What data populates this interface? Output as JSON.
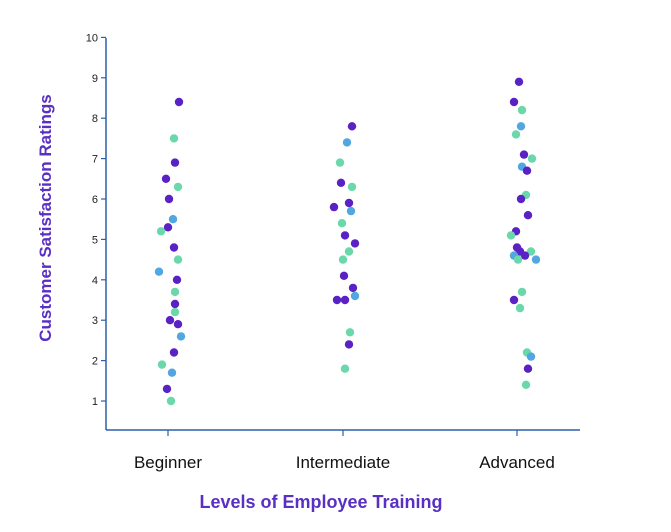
{
  "chart_data": {
    "type": "scatter",
    "title": "",
    "xlabel": "Levels of Employee Training",
    "ylabel": "Customer Satisfaction Ratings",
    "categories": [
      "Beginner",
      "Intermediate",
      "Advanced"
    ],
    "ylim": [
      0.5,
      10
    ],
    "yticks": [
      1,
      2,
      3,
      4,
      5,
      6,
      7,
      8,
      9,
      10
    ],
    "grid": false,
    "legend": "none",
    "colors": {
      "axis": "#2f5fa8",
      "label": "#5a2fc4",
      "purple": "#5a22c4",
      "teal": "#6ad8ab",
      "blue": "#52a7e0"
    },
    "points": [
      {
        "category": "Beginner",
        "offset": 0.22,
        "y": 8.4,
        "color": "purple"
      },
      {
        "category": "Beginner",
        "offset": 0.12,
        "y": 7.5,
        "color": "teal"
      },
      {
        "category": "Beginner",
        "offset": 0.14,
        "y": 6.9,
        "color": "purple"
      },
      {
        "category": "Beginner",
        "offset": -0.04,
        "y": 6.5,
        "color": "purple"
      },
      {
        "category": "Beginner",
        "offset": 0.2,
        "y": 6.3,
        "color": "teal"
      },
      {
        "category": "Beginner",
        "offset": 0.02,
        "y": 6.0,
        "color": "purple"
      },
      {
        "category": "Beginner",
        "offset": 0.1,
        "y": 5.5,
        "color": "blue"
      },
      {
        "category": "Beginner",
        "offset": 0.0,
        "y": 5.3,
        "color": "purple"
      },
      {
        "category": "Beginner",
        "offset": -0.14,
        "y": 5.2,
        "color": "teal"
      },
      {
        "category": "Beginner",
        "offset": 0.12,
        "y": 4.8,
        "color": "purple"
      },
      {
        "category": "Beginner",
        "offset": 0.2,
        "y": 4.5,
        "color": "teal"
      },
      {
        "category": "Beginner",
        "offset": -0.18,
        "y": 4.2,
        "color": "blue"
      },
      {
        "category": "Beginner",
        "offset": 0.18,
        "y": 4.0,
        "color": "purple"
      },
      {
        "category": "Beginner",
        "offset": 0.14,
        "y": 3.7,
        "color": "teal"
      },
      {
        "category": "Beginner",
        "offset": 0.14,
        "y": 3.4,
        "color": "purple"
      },
      {
        "category": "Beginner",
        "offset": 0.14,
        "y": 3.2,
        "color": "teal"
      },
      {
        "category": "Beginner",
        "offset": 0.04,
        "y": 3.0,
        "color": "purple"
      },
      {
        "category": "Beginner",
        "offset": 0.2,
        "y": 2.9,
        "color": "purple"
      },
      {
        "category": "Beginner",
        "offset": 0.26,
        "y": 2.6,
        "color": "blue"
      },
      {
        "category": "Beginner",
        "offset": 0.12,
        "y": 2.2,
        "color": "purple"
      },
      {
        "category": "Beginner",
        "offset": -0.12,
        "y": 1.9,
        "color": "teal"
      },
      {
        "category": "Beginner",
        "offset": 0.08,
        "y": 1.7,
        "color": "blue"
      },
      {
        "category": "Beginner",
        "offset": -0.02,
        "y": 1.3,
        "color": "purple"
      },
      {
        "category": "Beginner",
        "offset": 0.06,
        "y": 1.0,
        "color": "teal"
      },
      {
        "category": "Intermediate",
        "offset": 0.18,
        "y": 7.8,
        "color": "purple"
      },
      {
        "category": "Intermediate",
        "offset": 0.08,
        "y": 7.4,
        "color": "blue"
      },
      {
        "category": "Intermediate",
        "offset": -0.06,
        "y": 6.9,
        "color": "teal"
      },
      {
        "category": "Intermediate",
        "offset": -0.04,
        "y": 6.4,
        "color": "purple"
      },
      {
        "category": "Intermediate",
        "offset": 0.18,
        "y": 6.3,
        "color": "teal"
      },
      {
        "category": "Intermediate",
        "offset": 0.12,
        "y": 5.9,
        "color": "purple"
      },
      {
        "category": "Intermediate",
        "offset": -0.18,
        "y": 5.8,
        "color": "purple"
      },
      {
        "category": "Intermediate",
        "offset": 0.16,
        "y": 5.7,
        "color": "blue"
      },
      {
        "category": "Intermediate",
        "offset": -0.02,
        "y": 5.4,
        "color": "teal"
      },
      {
        "category": "Intermediate",
        "offset": 0.04,
        "y": 5.1,
        "color": "purple"
      },
      {
        "category": "Intermediate",
        "offset": 0.24,
        "y": 4.9,
        "color": "purple"
      },
      {
        "category": "Intermediate",
        "offset": 0.12,
        "y": 4.7,
        "color": "teal"
      },
      {
        "category": "Intermediate",
        "offset": 0.0,
        "y": 4.5,
        "color": "teal"
      },
      {
        "category": "Intermediate",
        "offset": 0.02,
        "y": 4.1,
        "color": "purple"
      },
      {
        "category": "Intermediate",
        "offset": 0.2,
        "y": 3.8,
        "color": "purple"
      },
      {
        "category": "Intermediate",
        "offset": 0.24,
        "y": 3.6,
        "color": "blue"
      },
      {
        "category": "Intermediate",
        "offset": -0.12,
        "y": 3.5,
        "color": "purple"
      },
      {
        "category": "Intermediate",
        "offset": 0.04,
        "y": 3.5,
        "color": "purple"
      },
      {
        "category": "Intermediate",
        "offset": 0.14,
        "y": 2.7,
        "color": "teal"
      },
      {
        "category": "Intermediate",
        "offset": 0.12,
        "y": 2.4,
        "color": "purple"
      },
      {
        "category": "Intermediate",
        "offset": 0.04,
        "y": 1.8,
        "color": "teal"
      },
      {
        "category": "Advanced",
        "offset": 0.04,
        "y": 8.9,
        "color": "purple"
      },
      {
        "category": "Advanced",
        "offset": -0.06,
        "y": 8.4,
        "color": "purple"
      },
      {
        "category": "Advanced",
        "offset": 0.1,
        "y": 8.2,
        "color": "teal"
      },
      {
        "category": "Advanced",
        "offset": 0.08,
        "y": 7.8,
        "color": "blue"
      },
      {
        "category": "Advanced",
        "offset": -0.02,
        "y": 7.6,
        "color": "teal"
      },
      {
        "category": "Advanced",
        "offset": 0.14,
        "y": 7.1,
        "color": "purple"
      },
      {
        "category": "Advanced",
        "offset": 0.3,
        "y": 7.0,
        "color": "teal"
      },
      {
        "category": "Advanced",
        "offset": 0.1,
        "y": 6.8,
        "color": "blue"
      },
      {
        "category": "Advanced",
        "offset": 0.2,
        "y": 6.7,
        "color": "purple"
      },
      {
        "category": "Advanced",
        "offset": 0.18,
        "y": 6.1,
        "color": "teal"
      },
      {
        "category": "Advanced",
        "offset": 0.08,
        "y": 6.0,
        "color": "purple"
      },
      {
        "category": "Advanced",
        "offset": 0.22,
        "y": 5.6,
        "color": "purple"
      },
      {
        "category": "Advanced",
        "offset": -0.02,
        "y": 5.2,
        "color": "purple"
      },
      {
        "category": "Advanced",
        "offset": -0.12,
        "y": 5.1,
        "color": "teal"
      },
      {
        "category": "Advanced",
        "offset": 0.0,
        "y": 4.8,
        "color": "purple"
      },
      {
        "category": "Advanced",
        "offset": 0.06,
        "y": 4.7,
        "color": "purple"
      },
      {
        "category": "Advanced",
        "offset": 0.28,
        "y": 4.7,
        "color": "teal"
      },
      {
        "category": "Advanced",
        "offset": -0.06,
        "y": 4.6,
        "color": "blue"
      },
      {
        "category": "Advanced",
        "offset": 0.16,
        "y": 4.6,
        "color": "purple"
      },
      {
        "category": "Advanced",
        "offset": 0.02,
        "y": 4.5,
        "color": "teal"
      },
      {
        "category": "Advanced",
        "offset": 0.38,
        "y": 4.5,
        "color": "blue"
      },
      {
        "category": "Advanced",
        "offset": 0.1,
        "y": 3.7,
        "color": "teal"
      },
      {
        "category": "Advanced",
        "offset": -0.06,
        "y": 3.5,
        "color": "purple"
      },
      {
        "category": "Advanced",
        "offset": 0.06,
        "y": 3.3,
        "color": "teal"
      },
      {
        "category": "Advanced",
        "offset": 0.2,
        "y": 2.2,
        "color": "teal"
      },
      {
        "category": "Advanced",
        "offset": 0.28,
        "y": 2.1,
        "color": "blue"
      },
      {
        "category": "Advanced",
        "offset": 0.22,
        "y": 1.8,
        "color": "purple"
      },
      {
        "category": "Advanced",
        "offset": 0.18,
        "y": 1.4,
        "color": "teal"
      }
    ]
  }
}
